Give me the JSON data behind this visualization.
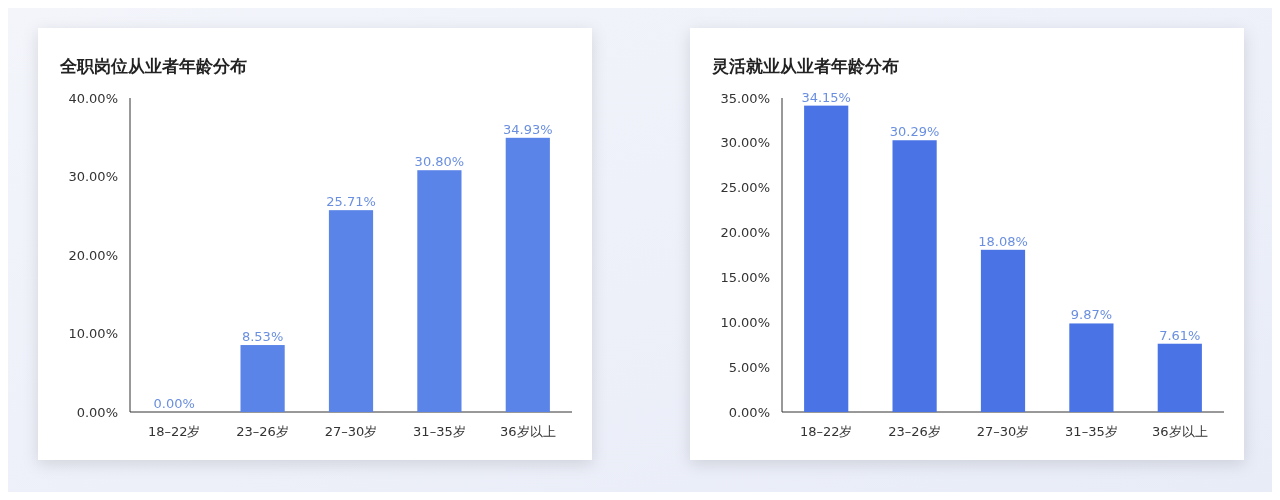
{
  "chart_data": [
    {
      "type": "bar",
      "title": "全职岗位从业者年龄分布",
      "categories": [
        "18–22岁",
        "23–26岁",
        "27–30岁",
        "31–35岁",
        "36岁以上"
      ],
      "values": [
        0,
        8.53,
        25.71,
        30.8,
        34.93
      ],
      "value_labels": [
        "0.00%",
        "8.53%",
        "25.71%",
        "30.80%",
        "34.93%"
      ],
      "color": "#5b84e8",
      "ylim": [
        0,
        40
      ],
      "yticks": [
        {
          "value": 0,
          "label": "0.00%"
        },
        {
          "value": 10,
          "label": "10.00%"
        },
        {
          "value": 20,
          "label": "20.00%"
        },
        {
          "value": 30,
          "label": "30.00%"
        },
        {
          "value": 40,
          "label": "40.00%"
        }
      ]
    },
    {
      "type": "bar",
      "title": "灵活就业从业者年龄分布",
      "categories": [
        "18–22岁",
        "23–26岁",
        "27–30岁",
        "31–35岁",
        "36岁以上"
      ],
      "values": [
        34.15,
        30.29,
        18.08,
        9.87,
        7.61
      ],
      "value_labels": [
        "34.15%",
        "30.29%",
        "18.08%",
        "9.87%",
        "7.61%"
      ],
      "color": "#4a74e6",
      "ylim": [
        0,
        35
      ],
      "yticks": [
        {
          "value": 0,
          "label": "0.00%"
        },
        {
          "value": 5,
          "label": "5.00%"
        },
        {
          "value": 10,
          "label": "10.00%"
        },
        {
          "value": 15,
          "label": "15.00%"
        },
        {
          "value": 20,
          "label": "20.00%"
        },
        {
          "value": 25,
          "label": "25.00%"
        },
        {
          "value": 30,
          "label": "30.00%"
        },
        {
          "value": 35,
          "label": "35.00%"
        }
      ]
    }
  ]
}
